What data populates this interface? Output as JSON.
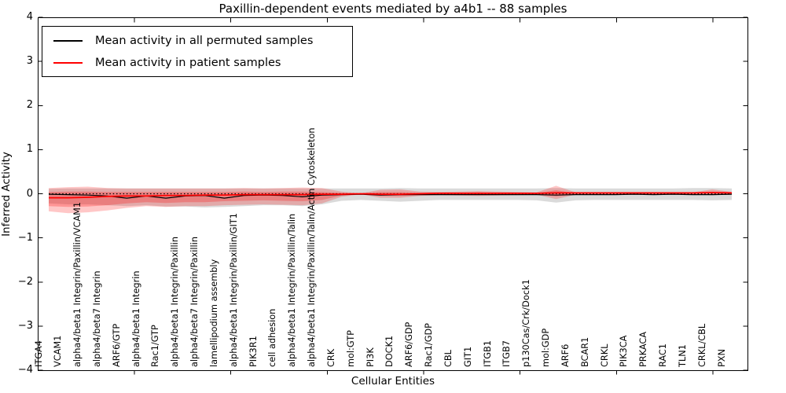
{
  "title": "Paxillin-dependent events mediated by a4b1 -- 88 samples",
  "axes": {
    "xlabel": "Cellular Entities",
    "ylabel": "Inferred Activity"
  },
  "legend": [
    {
      "label": "Mean activity in all permuted samples",
      "color": "#000000"
    },
    {
      "label": "Mean activity in patient samples",
      "color": "#ff0000"
    }
  ],
  "colors": {
    "permuted_line": "#000000",
    "patient_line": "#ff0000",
    "permuted_band": "#bbbbbb",
    "patient_band": "#ff0000",
    "zero_line": "#000000"
  },
  "chart_data": {
    "type": "line",
    "title": "Paxillin-dependent events mediated by a4b1 -- 88 samples",
    "xlabel": "Cellular Entities",
    "ylabel": "Inferred Activity",
    "ylim": [
      -4,
      4
    ],
    "ytick_labels": [
      "−4",
      "−3",
      "−2",
      "−1",
      "0",
      "1",
      "2",
      "3",
      "4"
    ],
    "grid": false,
    "legend_position": "upper left",
    "categories": [
      "ITGA4",
      "VCAM1",
      "alpha4/beta1 Integrin/Paxillin/VCAM1",
      "alpha4/beta7 Integrin",
      "ARF6/GTP",
      "alpha4/beta1 Integrin",
      "Rac1/GTP",
      "alpha4/beta1 Integrin/Paxillin",
      "alpha4/beta7 Integrin/Paxillin",
      "lamellipodium assembly",
      "alpha4/beta1 Integrin/Paxillin/GIT1",
      "PIK3R1",
      "cell adhesion",
      "alpha4/beta1 Integrin/Paxillin/Talin",
      "alpha4/beta1 Integrin/Paxillin/Talin/Actin Cytoskeleton",
      "CRK",
      "mol:GTP",
      "PI3K",
      "DOCK1",
      "ARF6/GDP",
      "Rac1/GDP",
      "CBL",
      "GIT1",
      "ITGB1",
      "ITGB7",
      "p130Cas/Crk/Dock1",
      "mol:GDP",
      "ARF6",
      "BCAR1",
      "CRKL",
      "PIK3CA",
      "PRKACA",
      "RAC1",
      "TLN1",
      "CRKL/CBL",
      "PXN"
    ],
    "series": [
      {
        "name": "Mean activity in all permuted samples",
        "color": "#000000",
        "style": "solid",
        "values": [
          -0.01,
          -0.02,
          -0.03,
          -0.05,
          -0.1,
          -0.05,
          -0.1,
          -0.05,
          -0.04,
          -0.1,
          -0.04,
          -0.03,
          -0.04,
          -0.07,
          -0.03,
          -0.02,
          -0.01,
          -0.03,
          -0.02,
          -0.02,
          -0.02,
          -0.02,
          -0.02,
          -0.02,
          -0.02,
          -0.02,
          -0.03,
          -0.02,
          -0.02,
          -0.02,
          -0.01,
          -0.02,
          -0.01,
          -0.02,
          -0.02,
          -0.01
        ]
      },
      {
        "name": "Mean activity in patient samples",
        "color": "#ff0000",
        "style": "solid",
        "values": [
          -0.09,
          -0.09,
          -0.08,
          -0.06,
          -0.05,
          -0.05,
          -0.04,
          -0.04,
          -0.03,
          -0.03,
          -0.02,
          -0.02,
          -0.02,
          -0.02,
          -0.01,
          -0.01,
          0.0,
          -0.01,
          -0.01,
          0.0,
          0.01,
          0.01,
          0.01,
          0.01,
          0.01,
          0.01,
          0.02,
          0.02,
          0.02,
          0.02,
          0.02,
          0.02,
          0.02,
          0.02,
          0.03,
          0.02
        ]
      }
    ],
    "bands": [
      {
        "name": "permuted-samples-range",
        "color": "#bbbbbb",
        "opacity": 0.55,
        "upper": [
          0.11,
          0.12,
          0.12,
          0.12,
          0.12,
          0.12,
          0.12,
          0.12,
          0.12,
          0.12,
          0.12,
          0.12,
          0.12,
          0.12,
          0.12,
          0.12,
          0.12,
          0.12,
          0.13,
          0.12,
          0.12,
          0.12,
          0.12,
          0.12,
          0.12,
          0.12,
          0.13,
          0.12,
          0.12,
          0.12,
          0.12,
          0.12,
          0.12,
          0.13,
          0.13,
          0.12
        ],
        "lower": [
          -0.22,
          -0.24,
          -0.24,
          -0.26,
          -0.28,
          -0.26,
          -0.29,
          -0.29,
          -0.31,
          -0.3,
          -0.28,
          -0.26,
          -0.26,
          -0.28,
          -0.24,
          -0.16,
          -0.14,
          -0.16,
          -0.18,
          -0.16,
          -0.14,
          -0.14,
          -0.14,
          -0.14,
          -0.14,
          -0.15,
          -0.2,
          -0.15,
          -0.14,
          -0.14,
          -0.14,
          -0.14,
          -0.14,
          -0.14,
          -0.15,
          -0.14
        ]
      },
      {
        "name": "patient-samples-range-outer",
        "color": "#ff0000",
        "opacity": 0.22,
        "upper": [
          0.13,
          0.15,
          0.16,
          0.13,
          0.12,
          0.12,
          0.12,
          0.12,
          0.12,
          0.12,
          0.13,
          0.12,
          0.13,
          0.14,
          0.13,
          0.05,
          0.01,
          0.09,
          0.1,
          0.05,
          0.04,
          0.05,
          0.06,
          0.05,
          0.04,
          0.03,
          0.18,
          0.03,
          0.02,
          0.02,
          0.02,
          0.02,
          0.02,
          0.03,
          0.1,
          0.04
        ],
        "lower": [
          -0.4,
          -0.44,
          -0.42,
          -0.38,
          -0.32,
          -0.28,
          -0.3,
          -0.28,
          -0.28,
          -0.26,
          -0.25,
          -0.24,
          -0.25,
          -0.26,
          -0.22,
          -0.07,
          -0.01,
          -0.09,
          -0.09,
          -0.05,
          -0.03,
          -0.04,
          -0.05,
          -0.04,
          -0.03,
          -0.02,
          -0.12,
          -0.02,
          -0.01,
          -0.01,
          -0.01,
          -0.01,
          -0.01,
          -0.01,
          -0.03,
          -0.02
        ]
      },
      {
        "name": "patient-samples-range-inner",
        "color": "#ff0000",
        "opacity": 0.25,
        "upper": [
          0.04,
          0.05,
          0.05,
          0.04,
          0.04,
          0.04,
          0.04,
          0.04,
          0.04,
          0.04,
          0.05,
          0.04,
          0.05,
          0.05,
          0.04,
          0.02,
          0.01,
          0.04,
          0.04,
          0.02,
          0.02,
          0.02,
          0.03,
          0.02,
          0.02,
          0.01,
          0.08,
          0.01,
          0.01,
          0.01,
          0.01,
          0.01,
          0.01,
          0.01,
          0.04,
          0.02
        ],
        "lower": [
          -0.28,
          -0.3,
          -0.29,
          -0.26,
          -0.22,
          -0.19,
          -0.21,
          -0.19,
          -0.19,
          -0.17,
          -0.16,
          -0.15,
          -0.16,
          -0.17,
          -0.14,
          -0.04,
          -0.01,
          -0.05,
          -0.05,
          -0.03,
          -0.01,
          -0.02,
          -0.02,
          -0.02,
          -0.01,
          -0.01,
          -0.06,
          -0.01,
          -0.01,
          -0.01,
          -0.01,
          -0.01,
          -0.01,
          -0.01,
          -0.02,
          -0.01
        ]
      }
    ],
    "zero_line": {
      "y": 0,
      "style": "dotted",
      "color": "#000000"
    }
  }
}
